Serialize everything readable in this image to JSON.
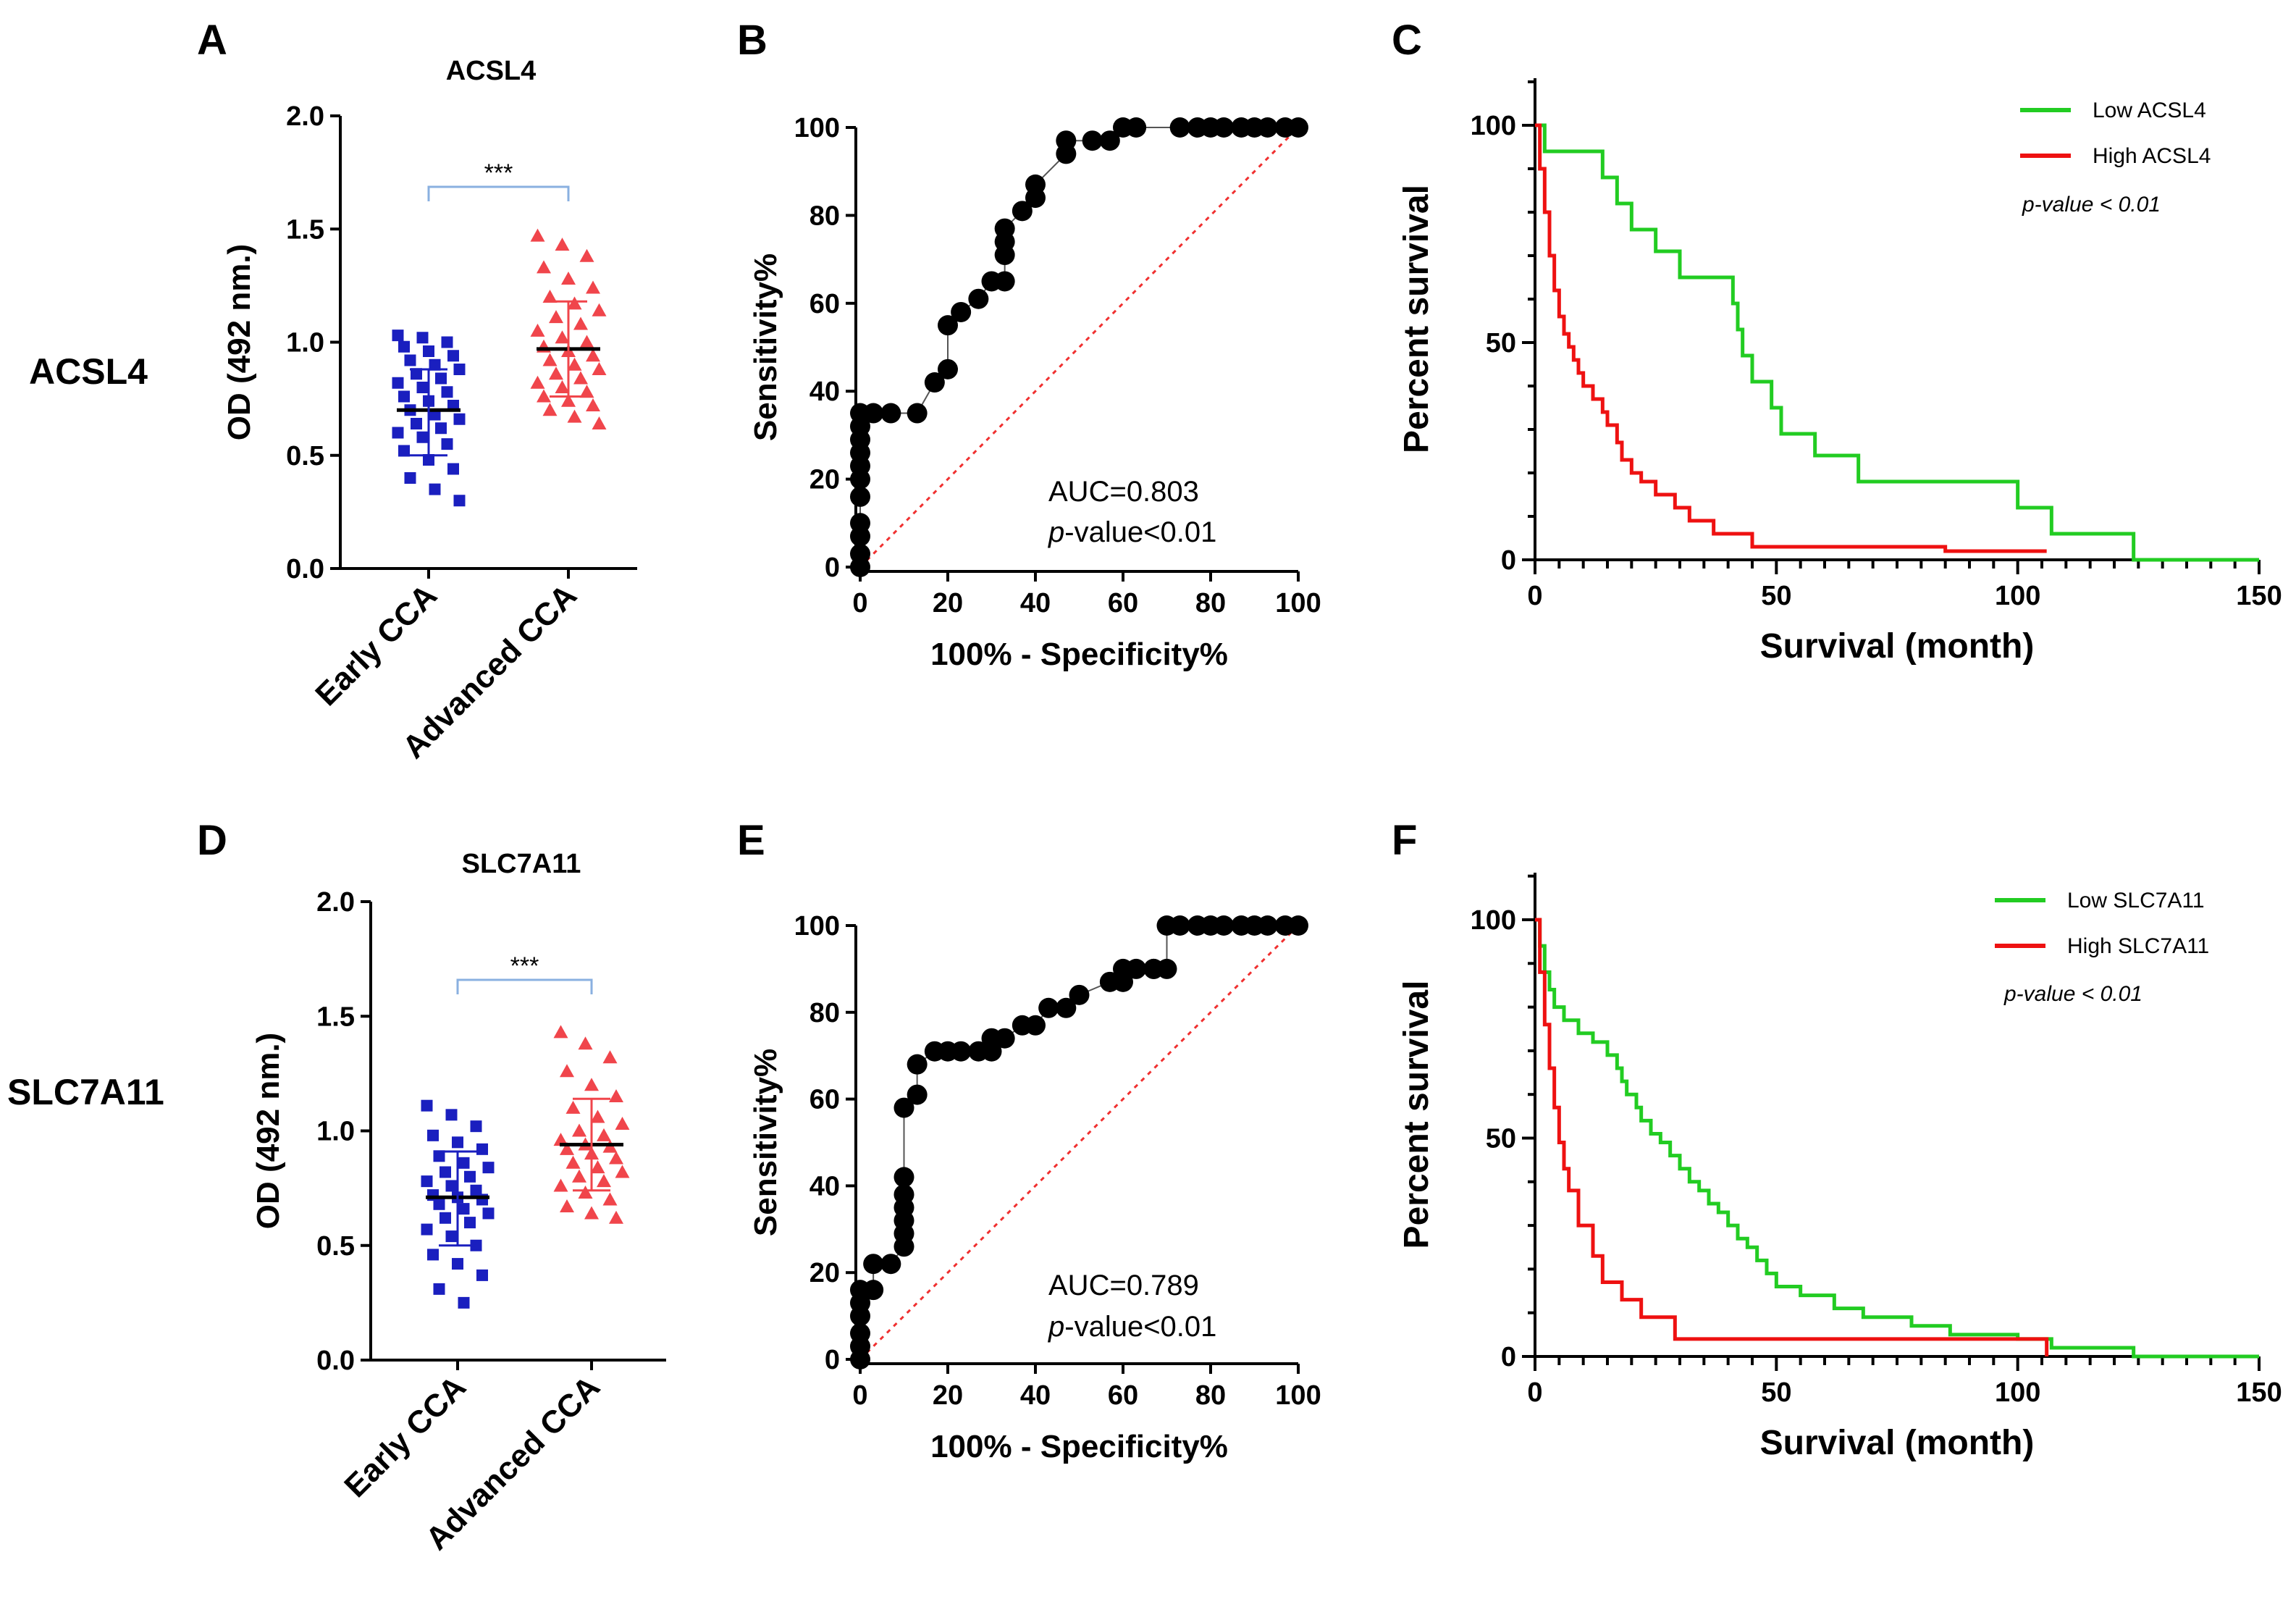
{
  "colors": {
    "early": "#1a1fbf",
    "advanced": "#f0454b",
    "low_curve": "#22cc22",
    "high_curve": "#ee1111",
    "sig_bracket": "#8ab0e0",
    "diagonal": "#f03030",
    "roc": "#000000"
  },
  "chart_data": [
    {
      "id": "A",
      "type": "scatter",
      "panel_letter": "A",
      "row_label": "ACSL4",
      "title": "ACSL4",
      "ylabel": "OD (492 nm.)",
      "ylim": [
        0,
        2.0
      ],
      "yticks": [
        "0.0",
        "0.5",
        "1.0",
        "1.5",
        "2.0"
      ],
      "categories": [
        "Early CCA",
        "Advanced CCA"
      ],
      "significance": "***",
      "series": [
        {
          "name": "Early CCA",
          "marker": "square",
          "mean": 0.7,
          "sd_low": 0.5,
          "sd_high": 0.88,
          "values": [
            1.03,
            1.02,
            1.0,
            0.98,
            0.96,
            0.94,
            0.92,
            0.9,
            0.88,
            0.86,
            0.84,
            0.82,
            0.8,
            0.78,
            0.76,
            0.74,
            0.72,
            0.7,
            0.68,
            0.66,
            0.64,
            0.62,
            0.6,
            0.58,
            0.55,
            0.52,
            0.48,
            0.44,
            0.4,
            0.35,
            0.3
          ]
        },
        {
          "name": "Advanced CCA",
          "marker": "triangle",
          "mean": 0.97,
          "sd_low": 0.76,
          "sd_high": 1.18,
          "values": [
            1.47,
            1.43,
            1.38,
            1.33,
            1.28,
            1.24,
            1.2,
            1.17,
            1.14,
            1.11,
            1.08,
            1.05,
            1.02,
            1.0,
            0.98,
            0.96,
            0.94,
            0.92,
            0.9,
            0.88,
            0.86,
            0.84,
            0.82,
            0.8,
            0.78,
            0.76,
            0.74,
            0.72,
            0.7,
            0.67,
            0.64
          ]
        }
      ]
    },
    {
      "id": "B",
      "type": "line",
      "panel_letter": "B",
      "xlabel": "100% - Specificity%",
      "ylabel": "Sensitivity%",
      "xlim": [
        0,
        100
      ],
      "ylim": [
        0,
        100
      ],
      "xticks": [
        "0",
        "20",
        "40",
        "60",
        "80",
        "100"
      ],
      "yticks": [
        "0",
        "20",
        "40",
        "60",
        "80",
        "100"
      ],
      "auc_text": "AUC=0.803",
      "p_prefix": "p",
      "p_suffix": "-value<0.01",
      "x": [
        0,
        0,
        0,
        0,
        0,
        0,
        0,
        0,
        0,
        0,
        0,
        3,
        7,
        13,
        17,
        20,
        20,
        23,
        27,
        30,
        33,
        33,
        33,
        33,
        37,
        40,
        40,
        47,
        47,
        53,
        57,
        60,
        63,
        73,
        77,
        80,
        83,
        87,
        90,
        93,
        97,
        100
      ],
      "y": [
        0,
        3,
        7,
        10,
        16,
        20,
        23,
        26,
        29,
        32,
        35,
        35,
        35,
        35,
        42,
        45,
        55,
        58,
        61,
        65,
        65,
        71,
        74,
        77,
        81,
        84,
        87,
        94,
        97,
        97,
        97,
        100,
        100,
        100,
        100,
        100,
        100,
        100,
        100,
        100,
        100,
        100
      ]
    },
    {
      "id": "C",
      "type": "line",
      "panel_letter": "C",
      "xlabel": "Survival (month)",
      "ylabel": "Percent survival",
      "xlim": [
        0,
        150
      ],
      "ylim": [
        0,
        100
      ],
      "xticks": [
        "0",
        "50",
        "100",
        "150"
      ],
      "yticks": [
        "0",
        "50",
        "100"
      ],
      "p_text": "p-value < 0.01",
      "series": [
        {
          "name": "Low ACSL4",
          "x": [
            0,
            2,
            2,
            14,
            14,
            17,
            17,
            20,
            20,
            25,
            25,
            30,
            30,
            41,
            41,
            42,
            42,
            43,
            43,
            45,
            45,
            49,
            49,
            51,
            51,
            58,
            58,
            67,
            67,
            100,
            100,
            107,
            107,
            124,
            124,
            150
          ],
          "y": [
            100,
            100,
            94,
            94,
            88,
            88,
            82,
            82,
            76,
            76,
            71,
            71,
            65,
            65,
            59,
            59,
            53,
            53,
            47,
            47,
            41,
            41,
            35,
            35,
            29,
            29,
            24,
            24,
            18,
            18,
            12,
            12,
            6,
            6,
            0,
            0
          ]
        },
        {
          "name": "High ACSL4",
          "x": [
            0,
            1,
            1,
            2,
            2,
            3,
            3,
            4,
            4,
            5,
            5,
            6,
            6,
            7,
            7,
            8,
            8,
            9,
            9,
            10,
            10,
            12,
            12,
            14,
            14,
            15,
            15,
            17,
            17,
            18,
            18,
            20,
            20,
            22,
            22,
            25,
            25,
            29,
            29,
            32,
            32,
            37,
            37,
            45,
            45,
            85,
            85,
            106
          ],
          "y": [
            100,
            100,
            90,
            90,
            80,
            80,
            70,
            70,
            62,
            62,
            56,
            56,
            52,
            52,
            49,
            49,
            46,
            46,
            43,
            43,
            40,
            40,
            37,
            37,
            34,
            34,
            31,
            31,
            27,
            27,
            23,
            23,
            20,
            20,
            18,
            18,
            15,
            15,
            12,
            12,
            9,
            9,
            6,
            6,
            3,
            3,
            2,
            2
          ]
        }
      ]
    },
    {
      "id": "D",
      "type": "scatter",
      "panel_letter": "D",
      "row_label": "SLC7A11",
      "title": "SLC7A11",
      "ylabel": "OD (492 nm.)",
      "ylim": [
        0,
        2.0
      ],
      "yticks": [
        "0.0",
        "0.5",
        "1.0",
        "1.5",
        "2.0"
      ],
      "categories": [
        "Early CCA",
        "Advanced CCA"
      ],
      "significance": "***",
      "series": [
        {
          "name": "Early CCA",
          "marker": "square",
          "mean": 0.71,
          "sd_low": 0.5,
          "sd_high": 0.91,
          "values": [
            1.11,
            1.07,
            1.02,
            0.98,
            0.95,
            0.92,
            0.89,
            0.86,
            0.84,
            0.82,
            0.8,
            0.78,
            0.76,
            0.74,
            0.72,
            0.71,
            0.7,
            0.68,
            0.66,
            0.64,
            0.62,
            0.6,
            0.57,
            0.54,
            0.5,
            0.46,
            0.42,
            0.37,
            0.31,
            0.25
          ]
        },
        {
          "name": "Advanced CCA",
          "marker": "triangle",
          "mean": 0.94,
          "sd_low": 0.74,
          "sd_high": 1.14,
          "values": [
            1.43,
            1.38,
            1.32,
            1.26,
            1.2,
            1.15,
            1.1,
            1.06,
            1.03,
            1.0,
            0.98,
            0.96,
            0.94,
            0.93,
            0.92,
            0.9,
            0.88,
            0.86,
            0.84,
            0.82,
            0.8,
            0.78,
            0.76,
            0.73,
            0.7,
            0.67,
            0.64,
            0.62
          ]
        }
      ]
    },
    {
      "id": "E",
      "type": "line",
      "panel_letter": "E",
      "xlabel": "100% - Specificity%",
      "ylabel": "Sensitivity%",
      "xlim": [
        0,
        100
      ],
      "ylim": [
        0,
        100
      ],
      "xticks": [
        "0",
        "20",
        "40",
        "60",
        "80",
        "100"
      ],
      "yticks": [
        "0",
        "20",
        "40",
        "60",
        "80",
        "100"
      ],
      "auc_text": "AUC=0.789",
      "p_prefix": "p",
      "p_suffix": "-value<0.01",
      "x": [
        0,
        0,
        0,
        0,
        0,
        0,
        3,
        3,
        7,
        10,
        10,
        10,
        10,
        10,
        10,
        10,
        13,
        13,
        17,
        20,
        23,
        27,
        30,
        30,
        33,
        37,
        40,
        43,
        47,
        50,
        57,
        60,
        60,
        63,
        67,
        67,
        70,
        70,
        73,
        77,
        80,
        83,
        87,
        90,
        93,
        97,
        100
      ],
      "y": [
        0,
        3,
        6,
        10,
        13,
        16,
        16,
        22,
        22,
        26,
        29,
        32,
        35,
        38,
        42,
        58,
        61,
        68,
        71,
        71,
        71,
        71,
        71,
        74,
        74,
        77,
        77,
        81,
        81,
        84,
        87,
        87,
        90,
        90,
        90,
        90,
        90,
        100,
        100,
        100,
        100,
        100,
        100,
        100,
        100,
        100,
        100
      ]
    },
    {
      "id": "F",
      "type": "line",
      "panel_letter": "F",
      "xlabel": "Survival (month)",
      "ylabel": "Percent survival",
      "xlim": [
        0,
        150
      ],
      "ylim": [
        0,
        100
      ],
      "xticks": [
        "0",
        "50",
        "100",
        "150"
      ],
      "yticks": [
        "0",
        "50",
        "100"
      ],
      "p_text": "p-value < 0.01",
      "series": [
        {
          "name": "Low SLC7A11",
          "x": [
            0,
            1,
            1,
            2,
            2,
            3,
            3,
            4,
            4,
            6,
            6,
            9,
            9,
            12,
            12,
            15,
            15,
            17,
            17,
            18,
            18,
            19,
            19,
            21,
            21,
            22,
            22,
            24,
            24,
            26,
            26,
            28,
            28,
            30,
            30,
            32,
            32,
            34,
            34,
            36,
            36,
            38,
            38,
            40,
            40,
            42,
            42,
            44,
            44,
            46,
            46,
            48,
            48,
            50,
            50,
            55,
            55,
            62,
            62,
            68,
            68,
            78,
            78,
            86,
            86,
            100,
            100,
            107,
            107,
            124,
            124,
            150
          ],
          "y": [
            100,
            100,
            94,
            94,
            88,
            88,
            84,
            84,
            80,
            80,
            77,
            77,
            74,
            74,
            72,
            72,
            69,
            69,
            66,
            66,
            63,
            63,
            60,
            60,
            57,
            57,
            54,
            54,
            51,
            51,
            49,
            49,
            46,
            46,
            43,
            43,
            40,
            40,
            38,
            38,
            35,
            35,
            33,
            33,
            30,
            30,
            27,
            27,
            25,
            25,
            22,
            22,
            19,
            19,
            16,
            16,
            14,
            14,
            11,
            11,
            9,
            9,
            7,
            7,
            5,
            5,
            4,
            4,
            2,
            2,
            0,
            0
          ]
        },
        {
          "name": "High SLC7A11",
          "x": [
            0,
            1,
            1,
            2,
            2,
            3,
            3,
            4,
            4,
            5,
            5,
            6,
            6,
            7,
            7,
            9,
            9,
            12,
            12,
            14,
            14,
            18,
            18,
            22,
            22,
            29,
            29,
            45,
            45,
            106,
            106
          ],
          "y": [
            100,
            100,
            88,
            88,
            76,
            76,
            66,
            66,
            57,
            57,
            49,
            49,
            43,
            43,
            38,
            38,
            30,
            30,
            23,
            23,
            17,
            17,
            13,
            13,
            9,
            9,
            4,
            4,
            4,
            4,
            0
          ]
        }
      ]
    }
  ]
}
